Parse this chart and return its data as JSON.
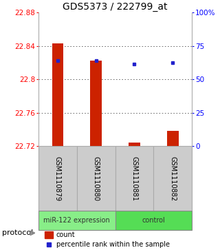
{
  "title": "GDS5373 / 222799_at",
  "samples": [
    "GSM1110879",
    "GSM1110880",
    "GSM1110881",
    "GSM1110882"
  ],
  "bar_values": [
    22.843,
    22.822,
    22.724,
    22.738
  ],
  "blue_dot_values": [
    22.822,
    22.822,
    22.818,
    22.82
  ],
  "y_min": 22.72,
  "y_max": 22.88,
  "y_ticks": [
    22.72,
    22.76,
    22.8,
    22.84,
    22.88
  ],
  "y_tick_labels": [
    "22.72",
    "22.76",
    "22.8",
    "22.84",
    "22.88"
  ],
  "y2_ticks": [
    0,
    25,
    50,
    75,
    100
  ],
  "y2_tick_labels": [
    "0",
    "25",
    "50",
    "75",
    "100%"
  ],
  "bar_color": "#cc2200",
  "dot_color": "#2222cc",
  "bar_base": 22.72,
  "groups": [
    {
      "label": "miR-122 expression",
      "samples": [
        0,
        1
      ],
      "color": "#88ee88"
    },
    {
      "label": "control",
      "samples": [
        2,
        3
      ],
      "color": "#55dd55"
    }
  ],
  "protocol_label": "protocol",
  "legend_count_label": "count",
  "legend_pct_label": "percentile rank within the sample",
  "title_fontsize": 10,
  "tick_fontsize": 7.5,
  "bg_color": "#ffffff",
  "plot_bg": "#ffffff",
  "sample_bg": "#cccccc",
  "sample_border": "#aaaaaa",
  "bar_width": 0.3
}
